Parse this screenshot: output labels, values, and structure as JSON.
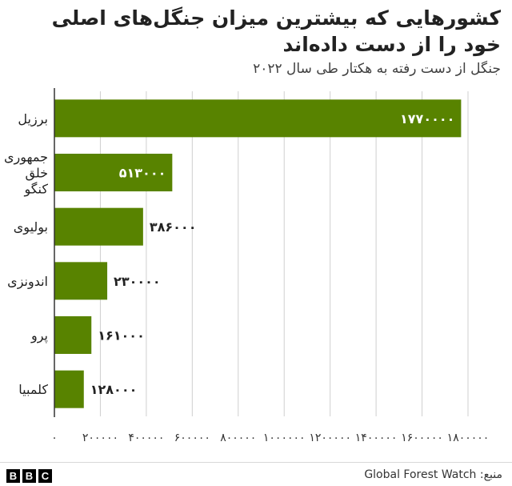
{
  "title": "کشورهایی که بیشترین میزان جنگل‌های اصلی خود را از دست داده‌اند",
  "subtitle": "جنگل از دست رفته به هکتار طی سال ۲۰۲۲",
  "source": "منبع: Global Forest Watch",
  "logo_letters": [
    "B",
    "B",
    "C"
  ],
  "colors": {
    "bar": "#588300",
    "axis": "#333333",
    "grid": "#cfcfcf"
  },
  "chart_data": {
    "type": "bar",
    "orientation": "horizontal",
    "categories": [
      [
        "برزیل"
      ],
      [
        "جمهوری",
        "خلق",
        "کنگو"
      ],
      [
        "بولیوی"
      ],
      [
        "اندونزی"
      ],
      [
        "پرو"
      ],
      [
        "کلمبیا"
      ]
    ],
    "values": [
      1770000,
      513000,
      386000,
      230000,
      161000,
      128000
    ],
    "value_labels": [
      "۱۷۷۰۰۰۰",
      "۵۱۳۰۰۰",
      "۳۸۶۰۰۰",
      "۲۳۰۰۰۰",
      "۱۶۱۰۰۰",
      "۱۲۸۰۰۰"
    ],
    "xlim": [
      0,
      1800000
    ],
    "x_ticks": [
      0,
      200000,
      400000,
      600000,
      800000,
      1000000,
      1200000,
      1400000,
      1600000,
      1800000
    ],
    "x_tick_labels": [
      "۰",
      "۲۰۰۰۰۰",
      "۴۰۰۰۰۰",
      "۶۰۰۰۰۰",
      "۸۰۰۰۰۰",
      "۱۰۰۰۰۰۰",
      "۱۲۰۰۰۰۰",
      "۱۴۰۰۰۰۰",
      "۱۶۰۰۰۰۰",
      "۱۸۰۰۰۰۰"
    ],
    "grid": true
  }
}
